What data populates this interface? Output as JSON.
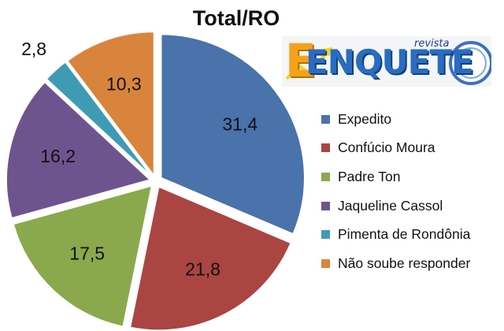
{
  "chart_data": {
    "type": "pie",
    "title": "Total/RO",
    "categories": [
      "Expedito",
      "Confúcio Moura",
      "Padre Ton",
      "Jaqueline Cassol",
      "Pimenta de Rondônia",
      "Não soube responder"
    ],
    "values": [
      31.4,
      21.8,
      17.5,
      16.2,
      2.8,
      10.3
    ],
    "data_labels": [
      "31,4",
      "21,8",
      "17,5",
      "16,2",
      "2,8",
      "10,3"
    ],
    "colors": [
      "#4a72ab",
      "#aa4542",
      "#8aa94c",
      "#6e548e",
      "#3f9bb3",
      "#d9843c"
    ],
    "legend_position": "right",
    "exploded": true
  },
  "logo": {
    "brand": "ENQUETE",
    "tagline": "revista"
  }
}
